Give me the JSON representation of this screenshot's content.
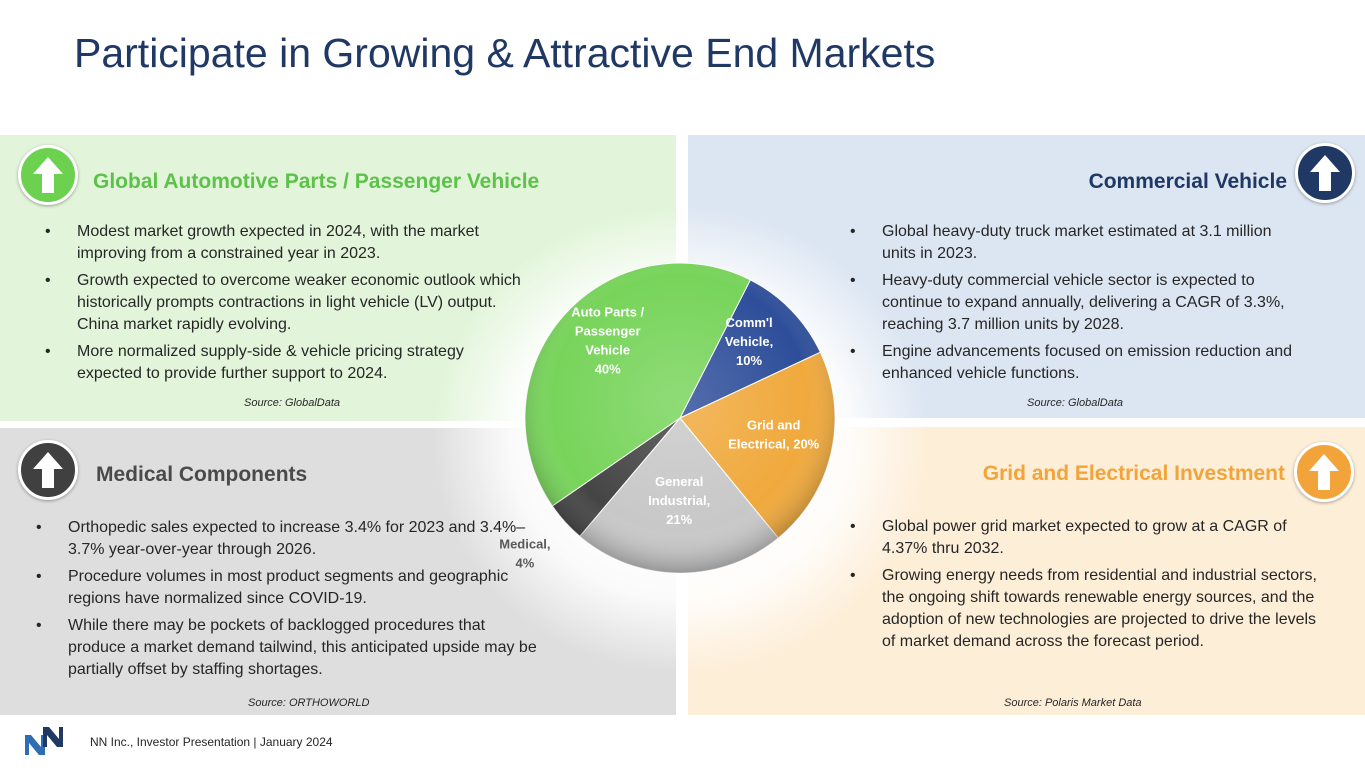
{
  "title": "Participate in Growing & Attractive End Markets",
  "panels": {
    "auto": {
      "heading": "Global Automotive Parts / Passenger Vehicle",
      "bullets": [
        "Modest market growth expected in 2024, with the market improving from a constrained year in 2023.",
        "Growth expected to overcome weaker economic outlook which historically prompts contractions in light vehicle (LV) output. China market rapidly evolving.",
        "More normalized supply-side & vehicle pricing strategy expected to provide further support to 2024."
      ],
      "source": "Source: GlobalData",
      "icon": "up-arrow-icon",
      "color": "#6cd14f"
    },
    "comm": {
      "heading": "Commercial Vehicle",
      "bullets": [
        "Global heavy-duty truck market estimated at 3.1 million units in 2023.",
        "Heavy-duty commercial vehicle sector is expected to continue to expand annually, delivering a CAGR of 3.3%, reaching 3.7 million units by 2028.",
        "Engine advancements focused on emission reduction and enhanced vehicle functions."
      ],
      "source": "Source: GlobalData",
      "icon": "up-arrow-icon",
      "color": "#1f3864"
    },
    "med": {
      "heading": "Medical Components",
      "bullets": [
        "Orthopedic sales expected to increase 3.4% for 2023 and 3.4%–3.7% year-over-year through 2026.",
        "Procedure volumes in most product segments and geographic regions have normalized since COVID-19.",
        "While there may be pockets of backlogged procedures that produce a market demand tailwind, this anticipated upside may be partially offset by staffing shortages."
      ],
      "source": "Source: ORTHOWORLD",
      "icon": "up-arrow-icon",
      "color": "#404040"
    },
    "grid": {
      "heading": "Grid and Electrical Investment",
      "bullets": [
        "Global power grid market expected to grow at a CAGR of 4.37% thru 2032.",
        "Growing energy needs from residential and industrial sectors, the ongoing shift towards renewable energy sources, and the adoption of new technologies are projected to drive the levels of market demand across the forecast period."
      ],
      "source": "Source: Polaris Market Data",
      "icon": "up-arrow-icon",
      "color": "#f2a33a"
    }
  },
  "chart_data": {
    "type": "pie",
    "title": "",
    "slices": [
      {
        "name": "Comm'l Vehicle",
        "label_lines": [
          "Comm'l",
          "Vehicle,",
          "10%"
        ],
        "value": 10,
        "color": "#2e4e9a"
      },
      {
        "name": "Grid and Electrical",
        "label_lines": [
          "Grid and",
          "Electrical, 20%"
        ],
        "value": 20,
        "color": "#f0a93c"
      },
      {
        "name": "General Industrial",
        "label_lines": [
          "General",
          "Industrial,",
          "21%"
        ],
        "value": 21,
        "color": "#c8c8c8"
      },
      {
        "name": "Medical",
        "label_lines": [
          "Medical,",
          "4%"
        ],
        "value": 4,
        "color": "#454545"
      },
      {
        "name": "Auto Parts / Passenger Vehicle",
        "label_lines": [
          "Auto Parts /",
          "Passenger",
          "Vehicle",
          "40%"
        ],
        "value": 40,
        "color": "#77d45a"
      }
    ]
  },
  "footer": {
    "text": "NN Inc., Investor Presentation | January 2024",
    "logo": "nn-logo-icon"
  }
}
